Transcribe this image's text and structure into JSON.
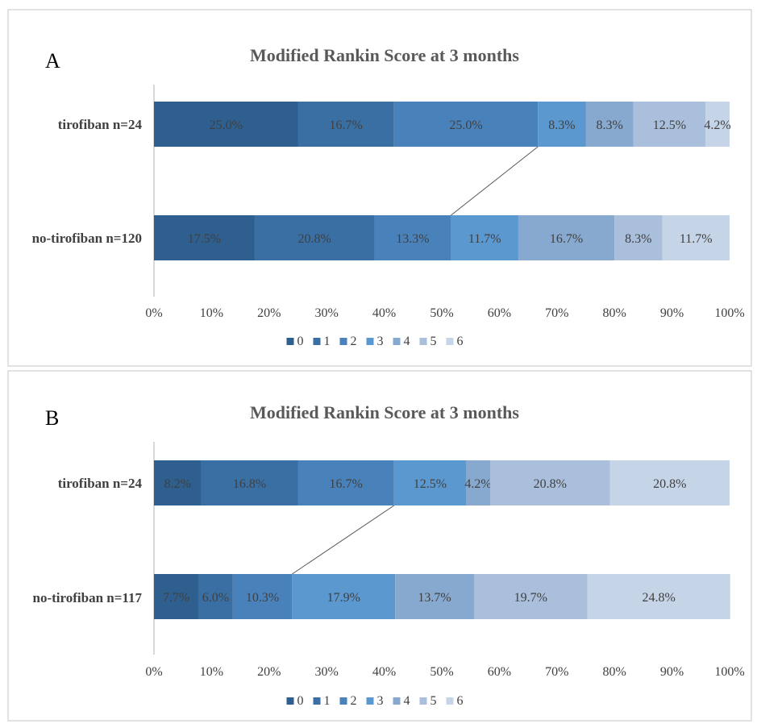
{
  "colors": {
    "mrs": [
      "#2e5f8e",
      "#3a6fa3",
      "#4982ba",
      "#5b98d0",
      "#87a9cf",
      "#a9bfdc",
      "#c6d4e8"
    ],
    "panel_border": "#d9d9d9",
    "axis": "#bfbfbf",
    "connector": "#595959",
    "label_text": "#404040"
  },
  "chart_data": [
    {
      "type": "bar",
      "orientation": "horizontal-stacked-100",
      "panel_label": "A",
      "title": "Modified Rankin Score at 3 months",
      "categories": [
        "tirofiban n=24",
        "no-tirofiban n=120"
      ],
      "series": [
        {
          "name": "0",
          "values": [
            25.0,
            17.5
          ],
          "labels": [
            "25.0%",
            "17.5%"
          ]
        },
        {
          "name": "1",
          "values": [
            16.7,
            20.8
          ],
          "labels": [
            "16.7%",
            "20.8%"
          ]
        },
        {
          "name": "2",
          "values": [
            25.0,
            13.3
          ],
          "labels": [
            "25.0%",
            "13.3%"
          ]
        },
        {
          "name": "3",
          "values": [
            8.3,
            11.7
          ],
          "labels": [
            "8.3%",
            "11.7%"
          ]
        },
        {
          "name": "4",
          "values": [
            8.3,
            16.7
          ],
          "labels": [
            "8.3%",
            "16.7%"
          ]
        },
        {
          "name": "5",
          "values": [
            12.5,
            8.3
          ],
          "labels": [
            "12.5%",
            "8.3%"
          ]
        },
        {
          "name": "6",
          "values": [
            4.2,
            11.7
          ],
          "labels": [
            "4.2%",
            "11.7%"
          ]
        }
      ],
      "xlim": [
        0,
        100
      ],
      "xticks": [
        "0%",
        "10%",
        "20%",
        "30%",
        "40%",
        "50%",
        "60%",
        "70%",
        "80%",
        "90%",
        "100%"
      ],
      "connector_after_series": 2,
      "legend_position": "bottom",
      "grid": false
    },
    {
      "type": "bar",
      "orientation": "horizontal-stacked-100",
      "panel_label": "B",
      "title": "Modified Rankin Score at 3 months",
      "categories": [
        "tirofiban n=24",
        "no-tirofiban n=117"
      ],
      "series": [
        {
          "name": "0",
          "values": [
            8.2,
            7.7
          ],
          "labels": [
            "8.2%",
            "7.7%"
          ]
        },
        {
          "name": "1",
          "values": [
            16.8,
            6.0
          ],
          "labels": [
            "16.8%",
            "6.0%"
          ]
        },
        {
          "name": "2",
          "values": [
            16.7,
            10.3
          ],
          "labels": [
            "16.7%",
            "10.3%"
          ]
        },
        {
          "name": "3",
          "values": [
            12.5,
            17.9
          ],
          "labels": [
            "12.5%",
            "17.9%"
          ]
        },
        {
          "name": "4",
          "values": [
            4.2,
            13.7
          ],
          "labels": [
            "4.2%",
            "13.7%"
          ]
        },
        {
          "name": "5",
          "values": [
            20.8,
            19.7
          ],
          "labels": [
            "20.8%",
            "19.7%"
          ]
        },
        {
          "name": "6",
          "values": [
            20.8,
            24.8
          ],
          "labels": [
            "20.8%",
            "24.8%"
          ]
        }
      ],
      "xlim": [
        0,
        100
      ],
      "xticks": [
        "0%",
        "10%",
        "20%",
        "30%",
        "40%",
        "50%",
        "60%",
        "70%",
        "80%",
        "90%",
        "100%"
      ],
      "connector_after_series": 2,
      "legend_position": "bottom",
      "grid": false
    }
  ]
}
